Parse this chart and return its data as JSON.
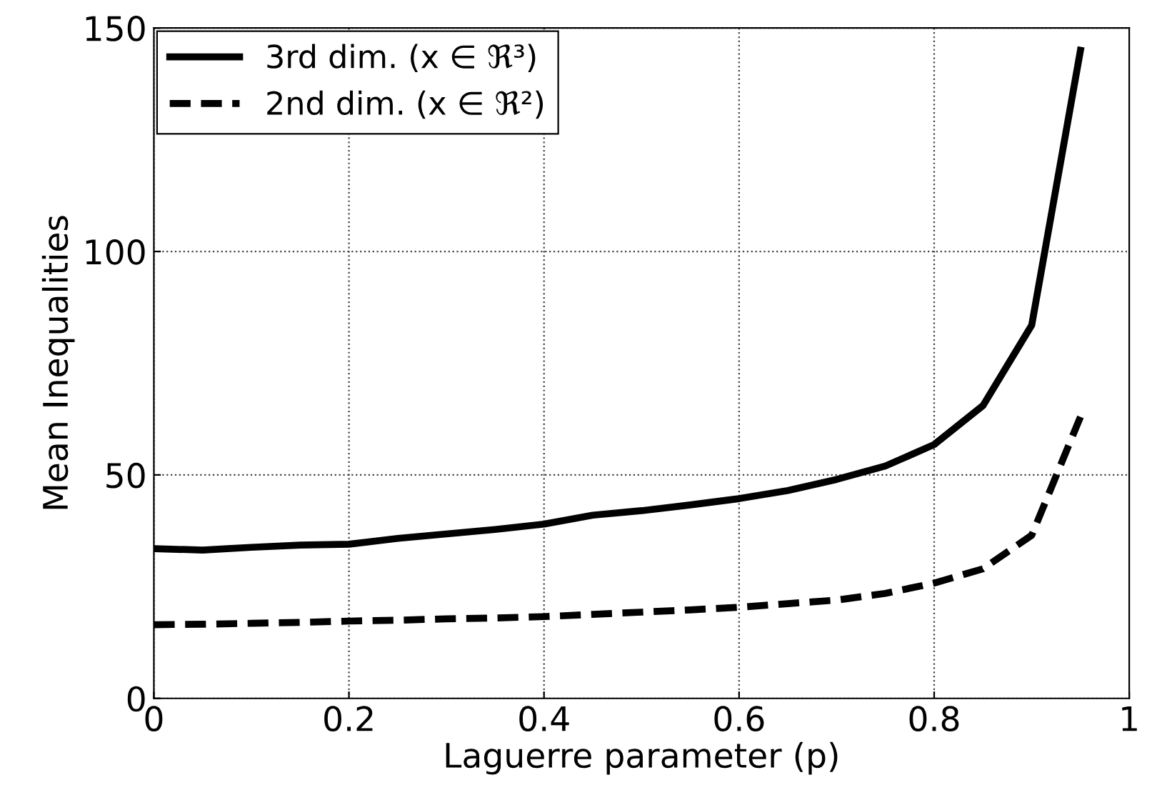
{
  "chart_data": {
    "type": "line",
    "xlabel": "Laguerre parameter (p)",
    "ylabel": "Mean Inequalities",
    "x": [
      0,
      0.05,
      0.1,
      0.15,
      0.2,
      0.25,
      0.3,
      0.35,
      0.4,
      0.45,
      0.5,
      0.55,
      0.6,
      0.65,
      0.7,
      0.75,
      0.8,
      0.85,
      0.9,
      0.95
    ],
    "series": [
      {
        "name": "3rd dim. (x ∈ ℜ³)",
        "color": "#000000",
        "line_style": "solid",
        "values": [
          33.5,
          33.2,
          33.8,
          34.3,
          34.5,
          35.8,
          36.8,
          37.8,
          39,
          41,
          42,
          43.3,
          44.7,
          46.5,
          49,
          52,
          56.8,
          65.5,
          83.5,
          145
        ]
      },
      {
        "name": "2nd dim. (x ∈ ℜ²)",
        "color": "#000000",
        "line_style": "dashed",
        "values": [
          16.5,
          16.6,
          16.8,
          17,
          17.3,
          17.5,
          17.8,
          18,
          18.3,
          18.8,
          19.3,
          19.8,
          20.4,
          21.2,
          22,
          23.5,
          25.8,
          29,
          36.5,
          63
        ]
      }
    ],
    "xlim": [
      0,
      1
    ],
    "xticks": [
      0,
      0.2,
      0.4,
      0.6,
      0.8,
      1
    ],
    "ylim": [
      0,
      150
    ],
    "yticks": [
      0,
      50,
      100,
      150
    ],
    "grid": true,
    "legend": "top left",
    "marker": "none"
  }
}
